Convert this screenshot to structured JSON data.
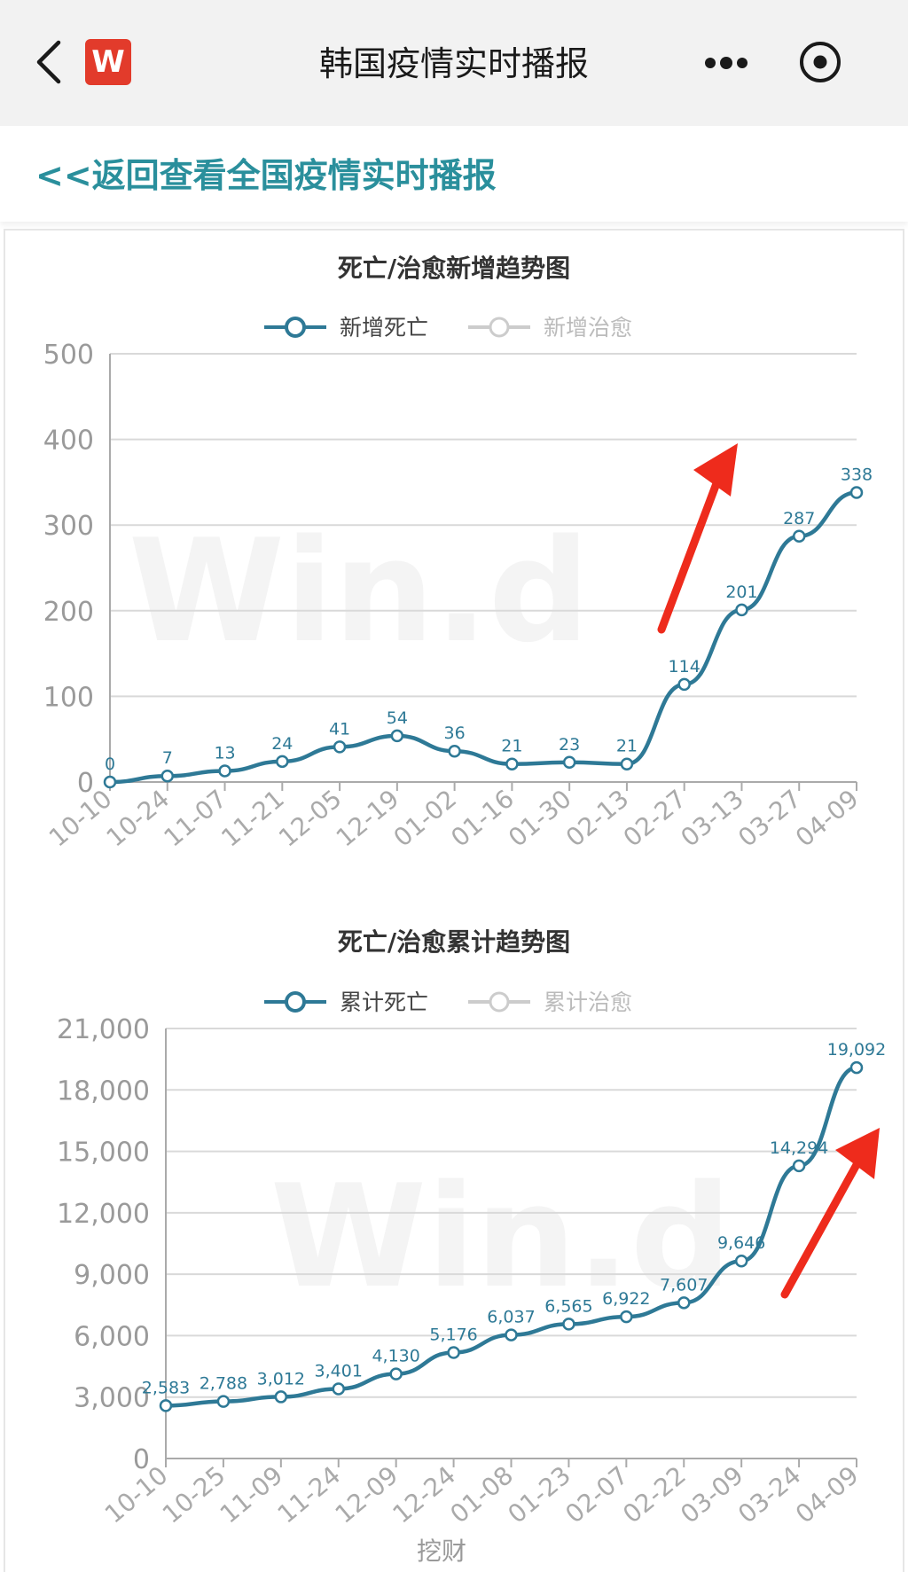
{
  "topbar": {
    "title": "韩国疫情实时播报",
    "logo_text": "W"
  },
  "subheader": {
    "back_link": "<<返回查看全国疫情实时播报"
  },
  "watermark": "Win.d",
  "footer_watermark": "挖财",
  "colors": {
    "series": "#2e7996",
    "inactive": "#cccccc",
    "grid": "#d9d9d9",
    "axis": "#aaaaaa",
    "arrow": "#ee2b1c",
    "link": "#2a8f9c"
  },
  "chart_data": [
    {
      "type": "line",
      "title": "死亡/治愈新增趋势图",
      "series": [
        {
          "name": "新增死亡",
          "active": true,
          "x": [
            "10-10",
            "10-24",
            "11-07",
            "11-21",
            "12-05",
            "12-19",
            "01-02",
            "01-16",
            "01-30",
            "02-13",
            "02-27",
            "03-13",
            "03-27",
            "04-09"
          ],
          "values": [
            0,
            7,
            13,
            24,
            41,
            54,
            36,
            21,
            23,
            21,
            114,
            201,
            287,
            338
          ],
          "marker_labels": [
            "0",
            "7",
            "13",
            "24",
            "41",
            "54",
            "36",
            "21",
            "23",
            "21",
            "114",
            "201",
            "287",
            "338"
          ]
        },
        {
          "name": "新增治愈",
          "active": false,
          "values": []
        }
      ],
      "ylim": [
        0,
        500
      ],
      "yticks": [
        "500",
        "400",
        "300",
        "200",
        "100",
        "0"
      ],
      "xticks": [
        "10-10",
        "10-24",
        "11-07",
        "11-21",
        "12-05",
        "12-19",
        "01-02",
        "01-16",
        "01-30",
        "02-13",
        "02-27",
        "03-13",
        "03-27",
        "04-09"
      ],
      "grid": true,
      "legend": "top-center"
    },
    {
      "type": "line",
      "title": "死亡/治愈累计趋势图",
      "series": [
        {
          "name": "累计死亡",
          "active": true,
          "x": [
            "10-10",
            "10-25",
            "11-09",
            "11-24",
            "12-09",
            "12-24",
            "01-08",
            "01-23",
            "02-07",
            "02-22",
            "03-09",
            "03-24",
            "04-09"
          ],
          "values": [
            2583,
            2788,
            3012,
            3401,
            4130,
            5176,
            6037,
            6565,
            6922,
            7607,
            9646,
            14294,
            19092
          ],
          "marker_labels": [
            "2,583",
            "2,788",
            "3,012",
            "3,401",
            "4,130",
            "5,176",
            "6,037",
            "6,565",
            "6,922",
            "7,607",
            "9,646",
            "14,294",
            "19,092"
          ]
        },
        {
          "name": "累计治愈",
          "active": false,
          "values": []
        }
      ],
      "ylim": [
        0,
        21000
      ],
      "yticks": [
        "21,000",
        "18,000",
        "15,000",
        "12,000",
        "9,000",
        "6,000",
        "3,000",
        "0"
      ],
      "xticks": [
        "10-10",
        "10-25",
        "11-09",
        "11-24",
        "12-09",
        "12-24",
        "01-08",
        "01-23",
        "02-07",
        "02-22",
        "03-09",
        "03-24",
        "04-09"
      ],
      "grid": true,
      "legend": "top-center"
    }
  ]
}
